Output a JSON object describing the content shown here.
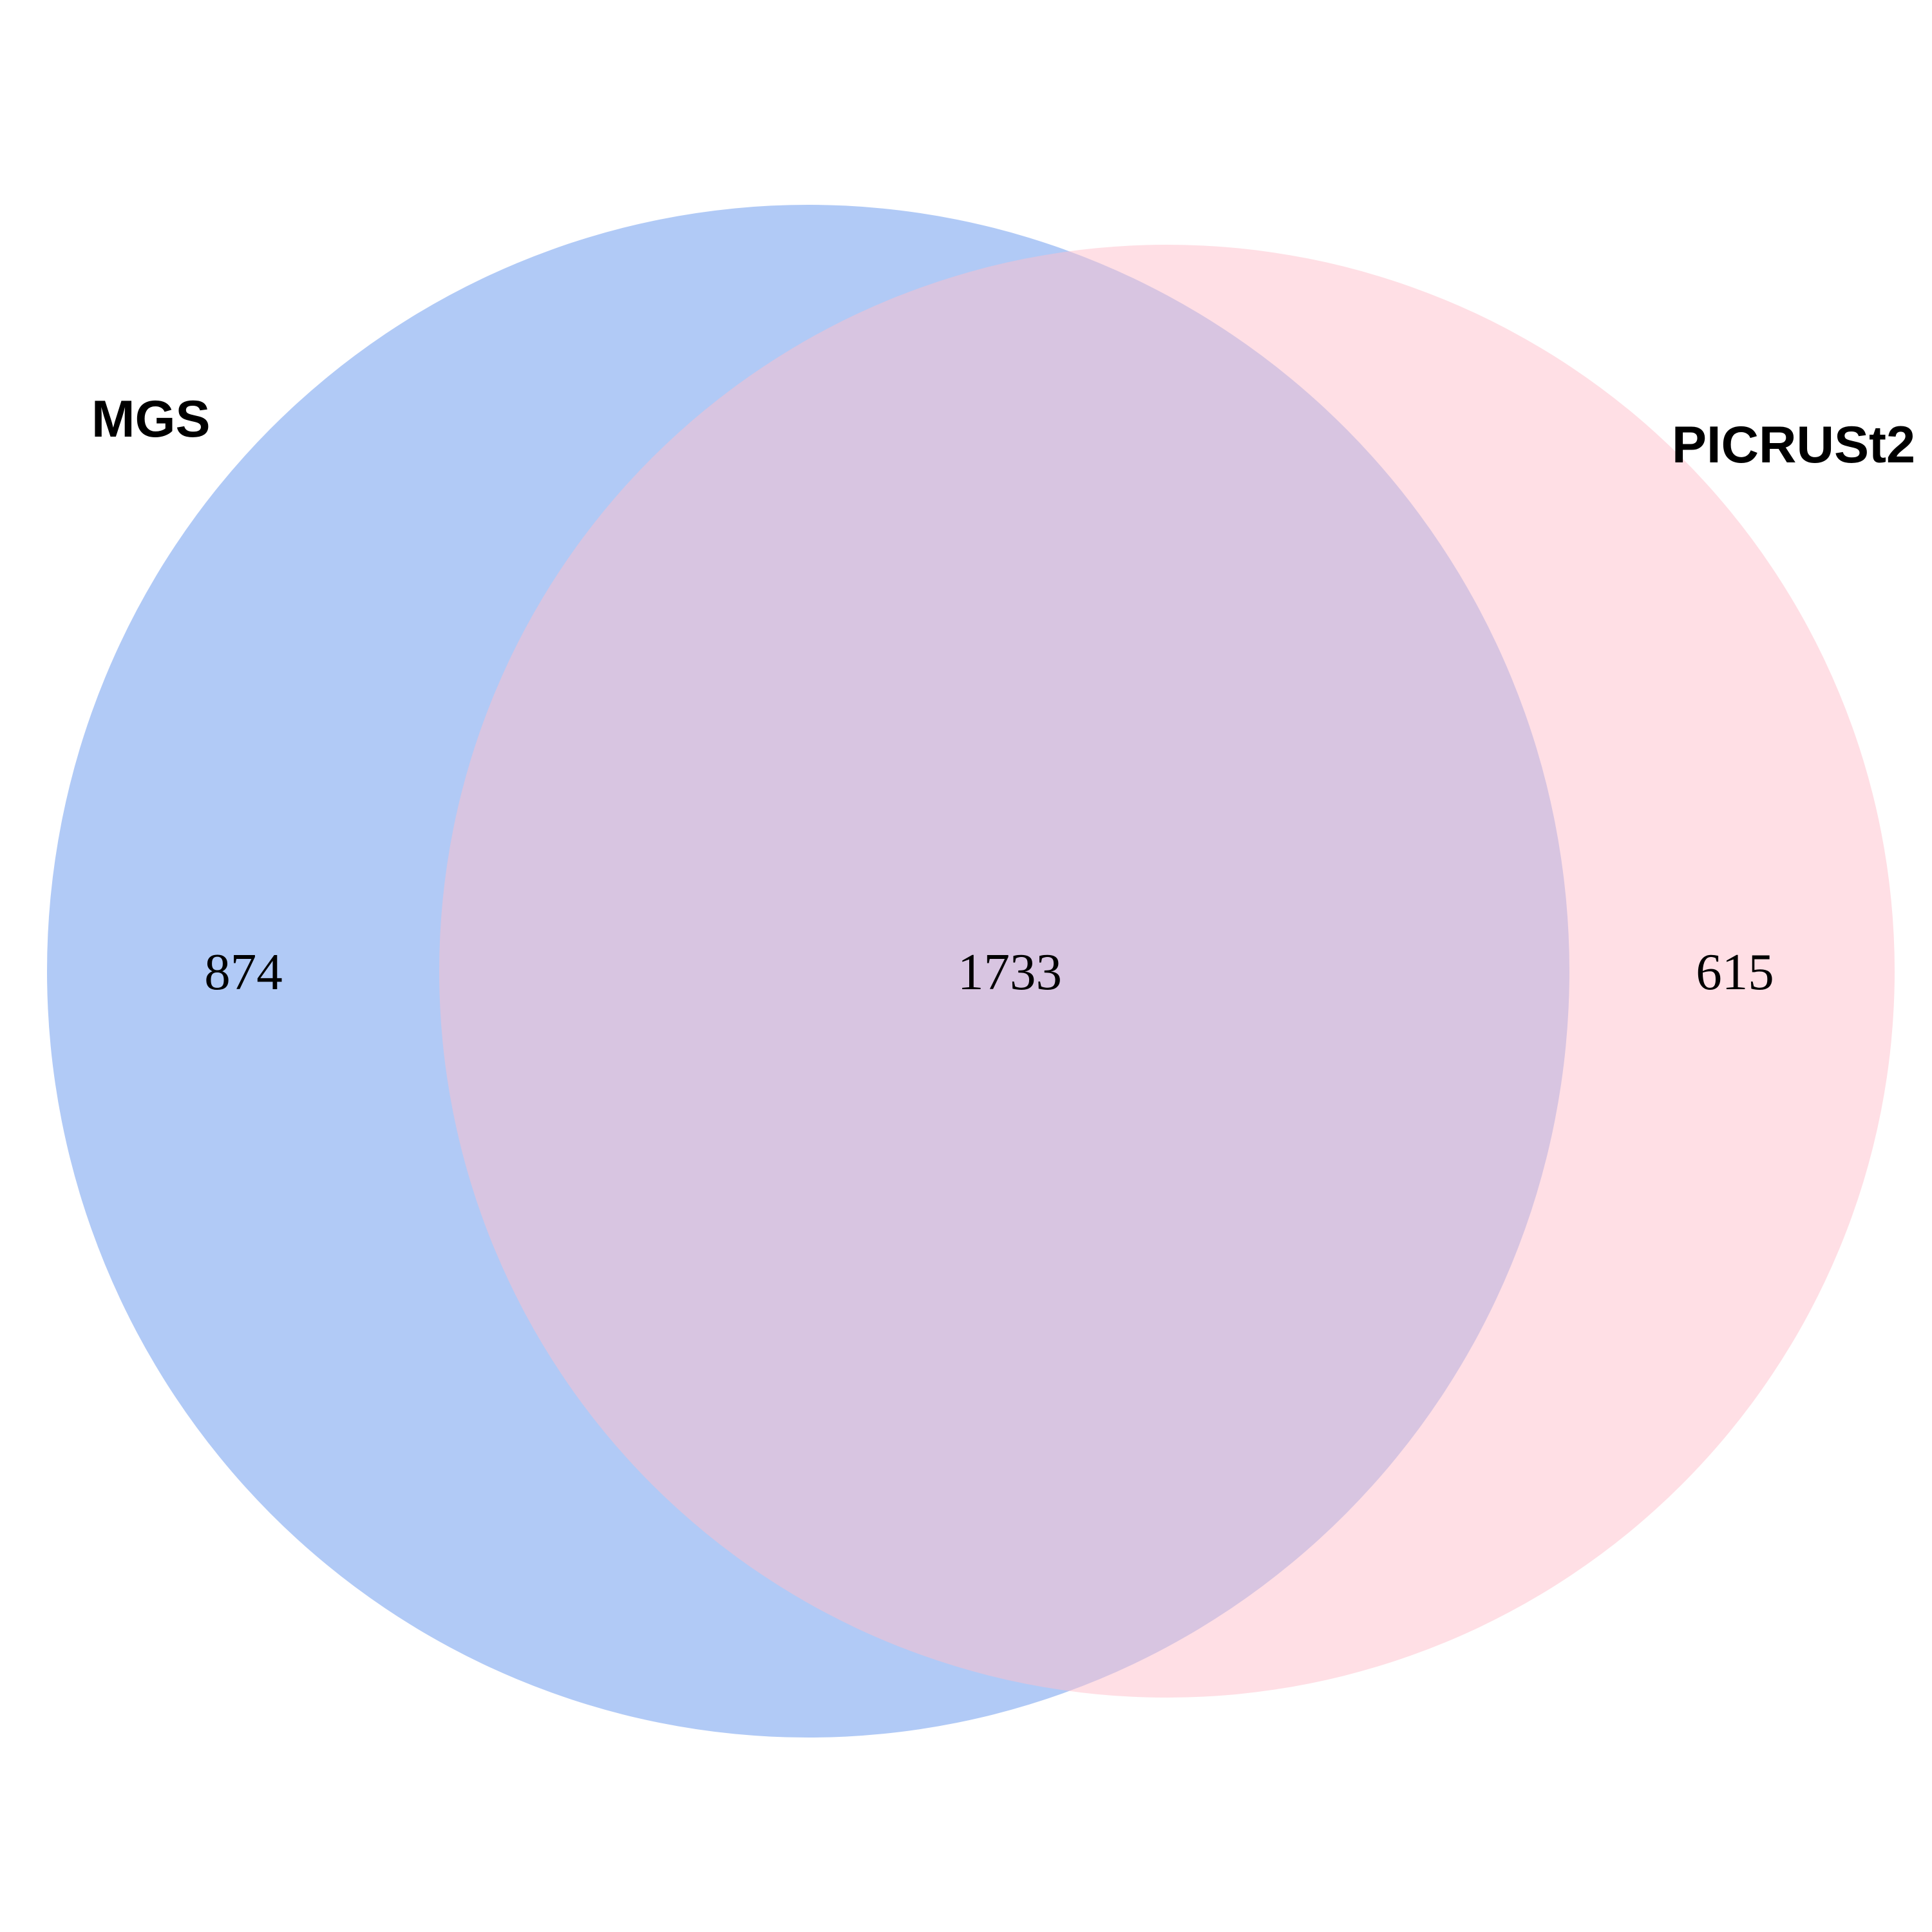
{
  "venn": {
    "sets": [
      {
        "name": "MGS",
        "color": "#6495ED"
      },
      {
        "name": "PICRUSt2",
        "color": "#FFC0CB"
      }
    ],
    "regions": {
      "mgs_only": "874",
      "intersection": "1733",
      "picrust2_only": "615"
    },
    "fill_opacity": 0.5
  }
}
